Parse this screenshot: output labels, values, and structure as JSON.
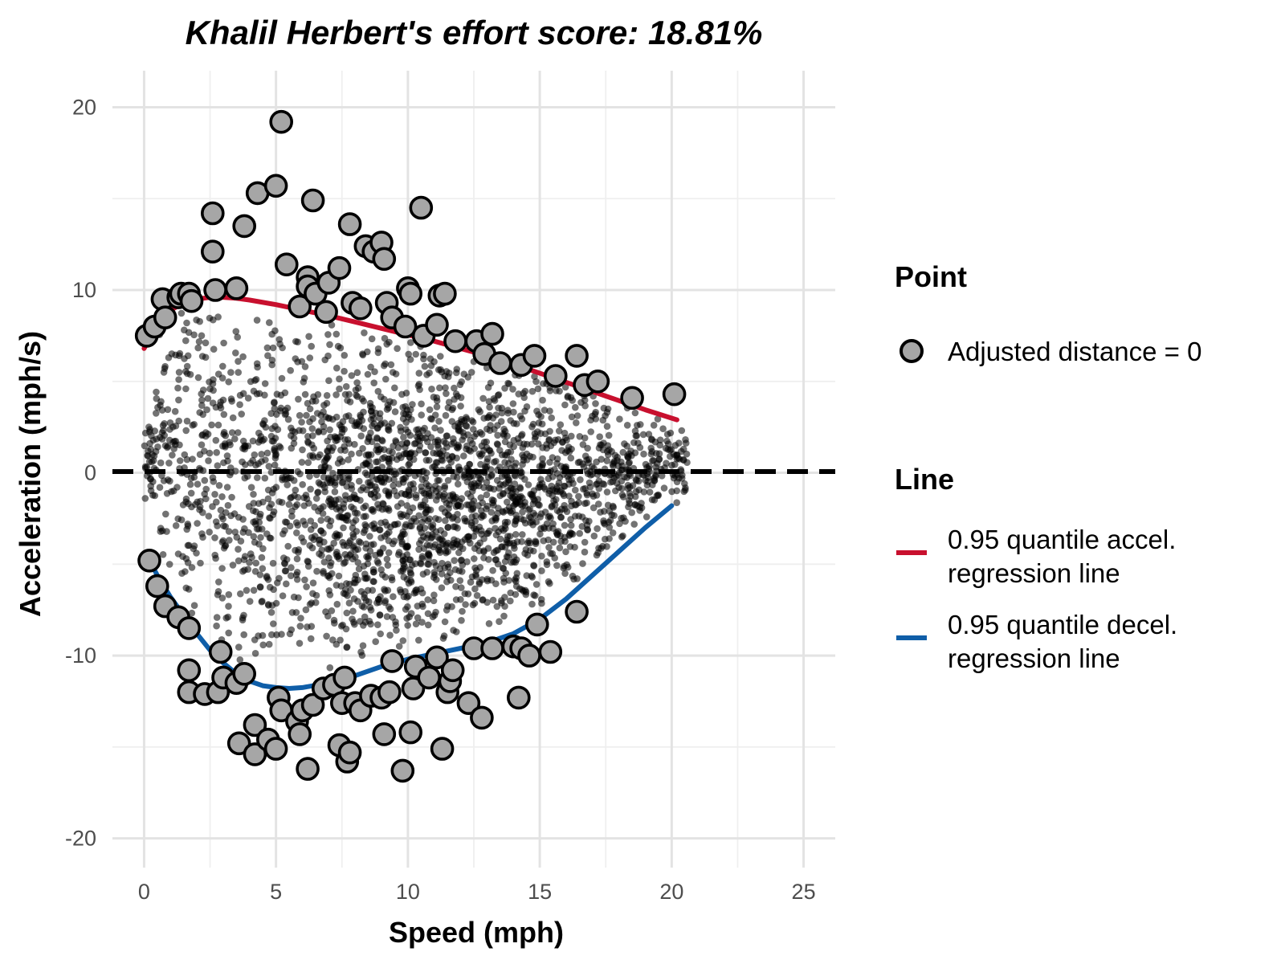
{
  "chart_data": {
    "type": "scatter",
    "title": "Khalil Herbert's effort score: 18.81%",
    "xlabel": "Speed (mph)",
    "ylabel": "Acceleration (mph/s)",
    "xlim": [
      -1.2,
      26.2
    ],
    "ylim": [
      -21.6,
      22
    ],
    "x_ticks": [
      "0",
      "5",
      "10",
      "15",
      "20",
      "25"
    ],
    "y_ticks": [
      "-20",
      "-10",
      "0",
      "10",
      "20"
    ],
    "grid": true,
    "reference_line": {
      "y": 0,
      "style": "dashed",
      "color": "#000000"
    },
    "background_points": {
      "count": 2600,
      "color": "#000000",
      "opacity": 0.55,
      "description": "unlabeled raw observations"
    },
    "highlighted_points": {
      "name": "Adjusted distance = 0",
      "fill": "#a6a6a6",
      "stroke": "#000000",
      "points": [
        [
          0.1,
          7.5
        ],
        [
          0.4,
          8.0
        ],
        [
          0.7,
          9.5
        ],
        [
          0.8,
          8.5
        ],
        [
          1.3,
          9.6
        ],
        [
          1.4,
          9.8
        ],
        [
          1.7,
          9.8
        ],
        [
          1.8,
          9.4
        ],
        [
          2.6,
          12.1
        ],
        [
          2.6,
          14.2
        ],
        [
          2.7,
          10.0
        ],
        [
          3.5,
          10.1
        ],
        [
          3.8,
          13.5
        ],
        [
          4.3,
          15.3
        ],
        [
          5.0,
          15.7
        ],
        [
          5.2,
          19.2
        ],
        [
          5.4,
          11.4
        ],
        [
          5.9,
          9.1
        ],
        [
          6.2,
          10.7
        ],
        [
          6.2,
          10.2
        ],
        [
          6.4,
          14.9
        ],
        [
          6.5,
          9.8
        ],
        [
          6.9,
          8.8
        ],
        [
          7.0,
          10.4
        ],
        [
          7.4,
          11.2
        ],
        [
          7.8,
          13.6
        ],
        [
          7.9,
          9.3
        ],
        [
          8.2,
          9.0
        ],
        [
          8.4,
          12.4
        ],
        [
          8.7,
          12.1
        ],
        [
          9.0,
          12.6
        ],
        [
          9.1,
          11.7
        ],
        [
          9.2,
          9.3
        ],
        [
          9.4,
          8.5
        ],
        [
          9.9,
          8.0
        ],
        [
          10.0,
          10.1
        ],
        [
          10.1,
          9.8
        ],
        [
          10.5,
          14.5
        ],
        [
          10.6,
          7.5
        ],
        [
          11.1,
          8.1
        ],
        [
          11.2,
          9.7
        ],
        [
          11.4,
          9.8
        ],
        [
          11.8,
          7.2
        ],
        [
          12.6,
          7.2
        ],
        [
          12.9,
          6.5
        ],
        [
          13.2,
          7.6
        ],
        [
          13.5,
          6.0
        ],
        [
          14.3,
          5.9
        ],
        [
          14.8,
          6.4
        ],
        [
          15.6,
          5.3
        ],
        [
          16.4,
          6.4
        ],
        [
          16.7,
          4.8
        ],
        [
          17.2,
          5.0
        ],
        [
          18.5,
          4.1
        ],
        [
          20.1,
          4.3
        ],
        [
          0.2,
          -4.8
        ],
        [
          0.5,
          -6.2
        ],
        [
          0.8,
          -7.3
        ],
        [
          1.3,
          -7.9
        ],
        [
          1.7,
          -8.5
        ],
        [
          1.7,
          -10.8
        ],
        [
          1.7,
          -12.0
        ],
        [
          2.3,
          -12.1
        ],
        [
          2.8,
          -12.0
        ],
        [
          2.9,
          -9.8
        ],
        [
          3.0,
          -11.2
        ],
        [
          3.5,
          -11.5
        ],
        [
          3.6,
          -14.8
        ],
        [
          3.8,
          -11.0
        ],
        [
          4.2,
          -13.8
        ],
        [
          4.2,
          -15.4
        ],
        [
          4.7,
          -14.6
        ],
        [
          5.0,
          -15.1
        ],
        [
          5.1,
          -12.3
        ],
        [
          5.2,
          -13.0
        ],
        [
          5.8,
          -13.6
        ],
        [
          5.9,
          -14.3
        ],
        [
          6.0,
          -13.0
        ],
        [
          6.2,
          -16.2
        ],
        [
          6.4,
          -12.7
        ],
        [
          6.8,
          -11.8
        ],
        [
          7.2,
          -11.6
        ],
        [
          7.4,
          -14.9
        ],
        [
          7.5,
          -12.6
        ],
        [
          7.6,
          -11.2
        ],
        [
          7.7,
          -15.8
        ],
        [
          7.8,
          -15.3
        ],
        [
          8.0,
          -12.6
        ],
        [
          8.2,
          -13.0
        ],
        [
          8.6,
          -12.2
        ],
        [
          9.0,
          -12.3
        ],
        [
          9.1,
          -14.3
        ],
        [
          9.3,
          -12.0
        ],
        [
          9.4,
          -10.3
        ],
        [
          9.8,
          -16.3
        ],
        [
          10.1,
          -14.2
        ],
        [
          10.2,
          -11.8
        ],
        [
          10.3,
          -10.6
        ],
        [
          10.8,
          -11.2
        ],
        [
          11.1,
          -10.1
        ],
        [
          11.3,
          -15.1
        ],
        [
          11.5,
          -12.0
        ],
        [
          11.6,
          -11.4
        ],
        [
          11.7,
          -10.8
        ],
        [
          12.3,
          -12.6
        ],
        [
          12.5,
          -9.6
        ],
        [
          12.8,
          -13.4
        ],
        [
          13.2,
          -9.6
        ],
        [
          14.0,
          -9.5
        ],
        [
          14.2,
          -12.3
        ],
        [
          14.3,
          -9.6
        ],
        [
          14.6,
          -10.0
        ],
        [
          14.9,
          -8.3
        ],
        [
          15.4,
          -9.8
        ],
        [
          16.4,
          -7.6
        ]
      ]
    },
    "series": [
      {
        "name": "0.95 quantile accel. regression line",
        "color": "#c8102e",
        "x": [
          0,
          0.5,
          1,
          1.5,
          2,
          2.5,
          3,
          3.5,
          4,
          5,
          6,
          7,
          8,
          9,
          10,
          11,
          12,
          13,
          14,
          15,
          16,
          17,
          18,
          19,
          20.2
        ],
        "y": [
          6.8,
          8.0,
          8.9,
          9.3,
          9.5,
          9.6,
          9.6,
          9.55,
          9.45,
          9.2,
          8.9,
          8.6,
          8.25,
          7.9,
          7.55,
          7.2,
          6.8,
          6.4,
          5.95,
          5.45,
          4.95,
          4.45,
          3.95,
          3.45,
          2.9
        ]
      },
      {
        "name": "0.95 quantile decel. regression line",
        "color": "#0f5ea8",
        "x": [
          0.2,
          0.5,
          1,
          1.5,
          2,
          2.5,
          3,
          3.5,
          4,
          4.5,
          5,
          5.5,
          6,
          7,
          8,
          9,
          10,
          11,
          12,
          13,
          14,
          15,
          16,
          17,
          18,
          19,
          20
        ],
        "y": [
          -4.8,
          -5.6,
          -6.8,
          -7.8,
          -8.8,
          -9.7,
          -10.4,
          -11.0,
          -11.4,
          -11.65,
          -11.75,
          -11.8,
          -11.75,
          -11.5,
          -11.1,
          -10.6,
          -10.2,
          -9.9,
          -9.6,
          -9.3,
          -8.8,
          -8.0,
          -6.9,
          -5.6,
          -4.3,
          -3.0,
          -1.8
        ]
      }
    ],
    "legend": {
      "placement": "right",
      "point_title": "Point",
      "point_label": "Adjusted distance = 0",
      "line_title": "Line",
      "line_labels": [
        [
          "0.95 quantile accel.",
          "regression line"
        ],
        [
          "0.95 quantile decel.",
          "regression line"
        ]
      ]
    }
  }
}
